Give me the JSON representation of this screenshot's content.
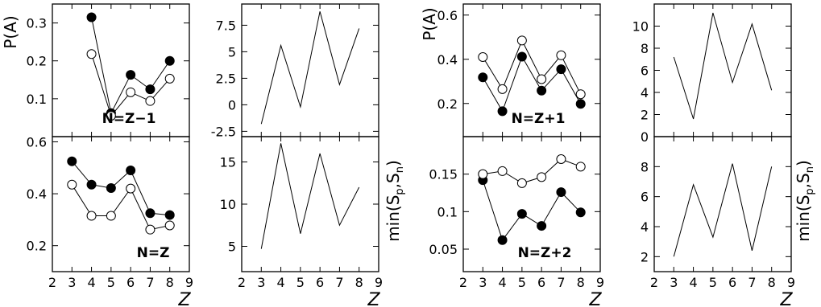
{
  "chart_data": [
    {
      "id": "pa-n-z-minus-1",
      "type": "scatter",
      "title": "",
      "annotation": "N=Z−1",
      "xlabel": "",
      "ylabel": "P(A)",
      "xlim": [
        2,
        9
      ],
      "ylim": [
        0.0,
        0.35
      ],
      "xticks": [],
      "yticks": [
        0.1,
        0.2,
        0.3
      ],
      "ytick_labels": [
        "0.1",
        "0.2",
        "0.3"
      ],
      "series": [
        {
          "marker": "filled",
          "x": [
            4,
            5,
            6,
            7,
            8
          ],
          "y": [
            0.315,
            0.062,
            0.163,
            0.125,
            0.2
          ]
        },
        {
          "marker": "open",
          "x": [
            4,
            5,
            6,
            7,
            8
          ],
          "y": [
            0.218,
            0.055,
            0.117,
            0.094,
            0.153
          ]
        }
      ]
    },
    {
      "id": "min-s-n-z-minus-1",
      "type": "line",
      "title": "",
      "annotation": "",
      "xlabel": "",
      "ylabel": "",
      "xlim": [
        2,
        9
      ],
      "ylim": [
        -3.0,
        9.5
      ],
      "xticks": [],
      "yticks": [
        -2.5,
        0,
        2.5,
        5,
        7.5
      ],
      "ytick_labels": [
        "-2.5",
        "0",
        "2.5",
        "5",
        "7.5"
      ],
      "series": [
        {
          "marker": "none",
          "x": [
            3,
            4,
            5,
            6,
            7,
            8
          ],
          "y": [
            -1.8,
            5.6,
            -0.2,
            8.8,
            1.9,
            7.2
          ]
        }
      ]
    },
    {
      "id": "pa-n-z-plus-1",
      "type": "scatter",
      "title": "",
      "annotation": "N=Z+1",
      "xlabel": "",
      "ylabel": "P(A)",
      "xlim": [
        2,
        9
      ],
      "ylim": [
        0.05,
        0.65
      ],
      "xticks": [],
      "yticks": [
        0.2,
        0.4,
        0.6
      ],
      "ytick_labels": [
        "0.2",
        "0.4",
        "0.6"
      ],
      "series": [
        {
          "marker": "filled",
          "x": [
            3,
            4,
            5,
            6,
            7,
            8
          ],
          "y": [
            0.318,
            0.165,
            0.412,
            0.258,
            0.355,
            0.198
          ]
        },
        {
          "marker": "open",
          "x": [
            3,
            4,
            5,
            6,
            7,
            8
          ],
          "y": [
            0.41,
            0.265,
            0.485,
            0.31,
            0.418,
            0.242
          ]
        }
      ]
    },
    {
      "id": "min-s-n-z-plus-1",
      "type": "line",
      "title": "",
      "annotation": "",
      "xlabel": "",
      "ylabel": "",
      "xlim": [
        2,
        9
      ],
      "ylim": [
        0,
        12
      ],
      "xticks": [],
      "yticks": [
        0,
        2,
        4,
        6,
        8,
        10
      ],
      "ytick_labels": [
        "0",
        "2",
        "4",
        "6",
        "8",
        "10"
      ],
      "series": [
        {
          "marker": "none",
          "x": [
            3,
            4,
            5,
            6,
            7,
            8
          ],
          "y": [
            7.2,
            1.6,
            11.2,
            4.9,
            10.2,
            4.2
          ]
        }
      ]
    },
    {
      "id": "pa-n-z",
      "type": "scatter",
      "title": "",
      "annotation": "N=Z",
      "xlabel": "Z",
      "ylabel": "",
      "xlim": [
        2,
        9
      ],
      "ylim": [
        0.1,
        0.62
      ],
      "xticks": [
        2,
        3,
        4,
        5,
        6,
        7,
        8,
        9
      ],
      "xtick_labels": [
        "2",
        "3",
        "4",
        "5",
        "6",
        "7",
        "8",
        "9"
      ],
      "yticks": [
        0.2,
        0.4,
        0.6
      ],
      "ytick_labels": [
        "0.2",
        "0.4",
        "0.6"
      ],
      "series": [
        {
          "marker": "filled",
          "x": [
            3,
            4,
            5,
            6,
            7,
            8
          ],
          "y": [
            0.525,
            0.435,
            0.422,
            0.49,
            0.325,
            0.318
          ]
        },
        {
          "marker": "open",
          "x": [
            3,
            4,
            5,
            6,
            7,
            8
          ],
          "y": [
            0.435,
            0.315,
            0.315,
            0.42,
            0.262,
            0.278
          ]
        }
      ]
    },
    {
      "id": "min-s-n-z",
      "type": "line",
      "title": "",
      "annotation": "",
      "xlabel": "Z",
      "ylabel": "min(Sp,Sn)",
      "ylabel_main": "min(S",
      "ylabel_sub1": "p",
      "ylabel_sep": ",S",
      "ylabel_sub2": "n",
      "ylabel_close": ")",
      "xlim": [
        2,
        9
      ],
      "ylim": [
        2,
        18
      ],
      "xticks": [
        2,
        3,
        4,
        5,
        6,
        7,
        8,
        9
      ],
      "xtick_labels": [
        "2",
        "3",
        "4",
        "5",
        "6",
        "7",
        "8",
        "9"
      ],
      "yticks": [
        5,
        10,
        15
      ],
      "ytick_labels": [
        "5",
        "10",
        "15"
      ],
      "series": [
        {
          "marker": "none",
          "x": [
            3,
            4,
            5,
            6,
            7,
            8
          ],
          "y": [
            4.7,
            17.2,
            6.5,
            16.0,
            7.5,
            12.0
          ]
        }
      ]
    },
    {
      "id": "pa-n-z-plus-2",
      "type": "scatter",
      "title": "",
      "annotation": "N=Z+2",
      "xlabel": "Z",
      "ylabel": "",
      "xlim": [
        2,
        9
      ],
      "ylim": [
        0.02,
        0.2
      ],
      "xticks": [
        2,
        3,
        4,
        5,
        6,
        7,
        8,
        9
      ],
      "xtick_labels": [
        "2",
        "3",
        "4",
        "5",
        "6",
        "7",
        "8",
        "9"
      ],
      "yticks": [
        0.05,
        0.1,
        0.15
      ],
      "ytick_labels": [
        "0.05",
        "0.1",
        "0.15"
      ],
      "series": [
        {
          "marker": "filled",
          "x": [
            3,
            4,
            5,
            6,
            7,
            8
          ],
          "y": [
            0.142,
            0.062,
            0.097,
            0.081,
            0.126,
            0.099
          ]
        },
        {
          "marker": "open",
          "x": [
            3,
            4,
            5,
            6,
            7,
            8
          ],
          "y": [
            0.15,
            0.154,
            0.138,
            0.146,
            0.17,
            0.16
          ]
        }
      ]
    },
    {
      "id": "min-s-n-z-plus-2",
      "type": "line",
      "title": "",
      "annotation": "",
      "xlabel": "Z",
      "ylabel": "min(Sp,Sn)",
      "ylabel_main": "min(S",
      "ylabel_sub1": "p",
      "ylabel_sep": ",S",
      "ylabel_sub2": "n",
      "ylabel_close": ")",
      "xlim": [
        2,
        9
      ],
      "ylim": [
        1,
        10
      ],
      "xticks": [
        2,
        3,
        4,
        5,
        6,
        7,
        8,
        9
      ],
      "xtick_labels": [
        "2",
        "3",
        "4",
        "5",
        "6",
        "7",
        "8",
        "9"
      ],
      "yticks": [
        2,
        4,
        6,
        8
      ],
      "ytick_labels": [
        "2",
        "4",
        "6",
        "8"
      ],
      "series": [
        {
          "marker": "none",
          "x": [
            3,
            4,
            5,
            6,
            7,
            8
          ],
          "y": [
            2.0,
            6.8,
            3.3,
            8.2,
            2.4,
            8.0
          ]
        }
      ]
    }
  ]
}
